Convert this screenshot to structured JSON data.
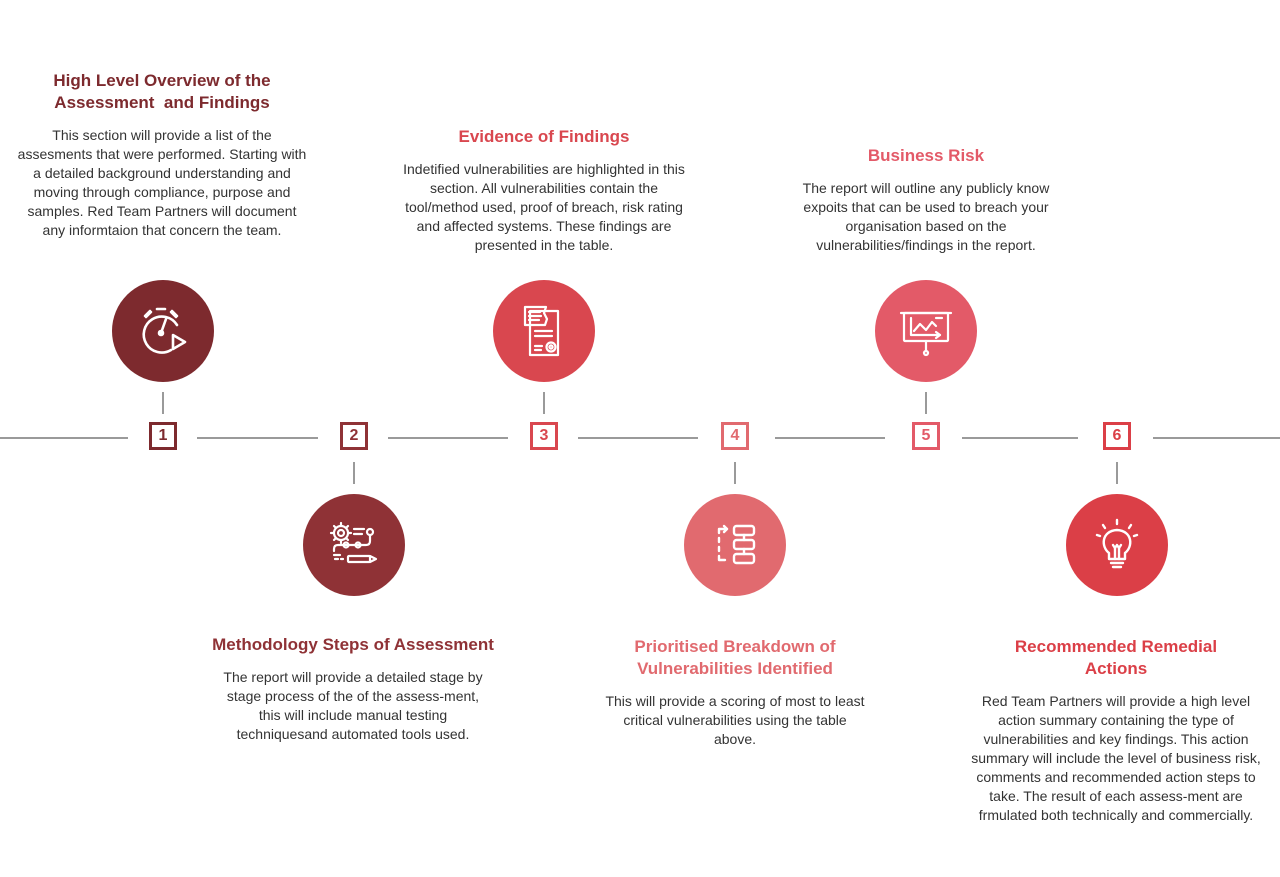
{
  "colors": {
    "step1": "#7d2a2e",
    "step2": "#8f3236",
    "step3": "#d9474f",
    "step4": "#e16a6f",
    "step5": "#e35a68",
    "step6": "#db3f47"
  },
  "steps": [
    {
      "number": "1",
      "title_line1": "High Level Overview of the",
      "title_line2": "Assessment  and Findings",
      "description": "This section will provide a list of the assesments that were performed. Starting with a detailed background understanding and moving through compliance, purpose and samples. Red Team Partners will document any informtaion that concern the team.",
      "icon": "stopwatch-play-icon"
    },
    {
      "number": "2",
      "title_line1": "Methodology Steps of Assessment",
      "title_line2": "",
      "description": "The report will provide a detailed stage by stage process of the of the assess-ment, this will include manual testing techniquesand automated tools used.",
      "icon": "gear-process-icon"
    },
    {
      "number": "3",
      "title_line1": "Evidence of Findings",
      "title_line2": "",
      "description": "Indetified vulnerabilities are highlighted in this section. All vulnerabilities contain the tool/method used, proof of breach, risk rating and affected systems. These findings are presented in the table.",
      "icon": "document-certificate-icon"
    },
    {
      "number": "4",
      "title_line1": "Prioritised Breakdown of",
      "title_line2": "Vulnerabilities Identified",
      "description": "This will provide a scoring of most to least critical vulnerabilities using the table above.",
      "icon": "flowchart-icon"
    },
    {
      "number": "5",
      "title_line1": "Business Risk",
      "title_line2": "",
      "description": "The report will outline any publicly know expoits that can be used to breach your organisation based on the vulnerabilities/findings in the report.",
      "icon": "presentation-board-icon"
    },
    {
      "number": "6",
      "title_line1": "Recommended Remedial",
      "title_line2": "Actions",
      "description": "Red Team Partners will provide a high level action summary containing the type of vulnerabilities and key findings. This action summary will include the level of business risk, comments and recommended action steps to take. The result of each assess-ment are frmulated both technically and commercially.",
      "icon": "lightbulb-icon"
    }
  ]
}
